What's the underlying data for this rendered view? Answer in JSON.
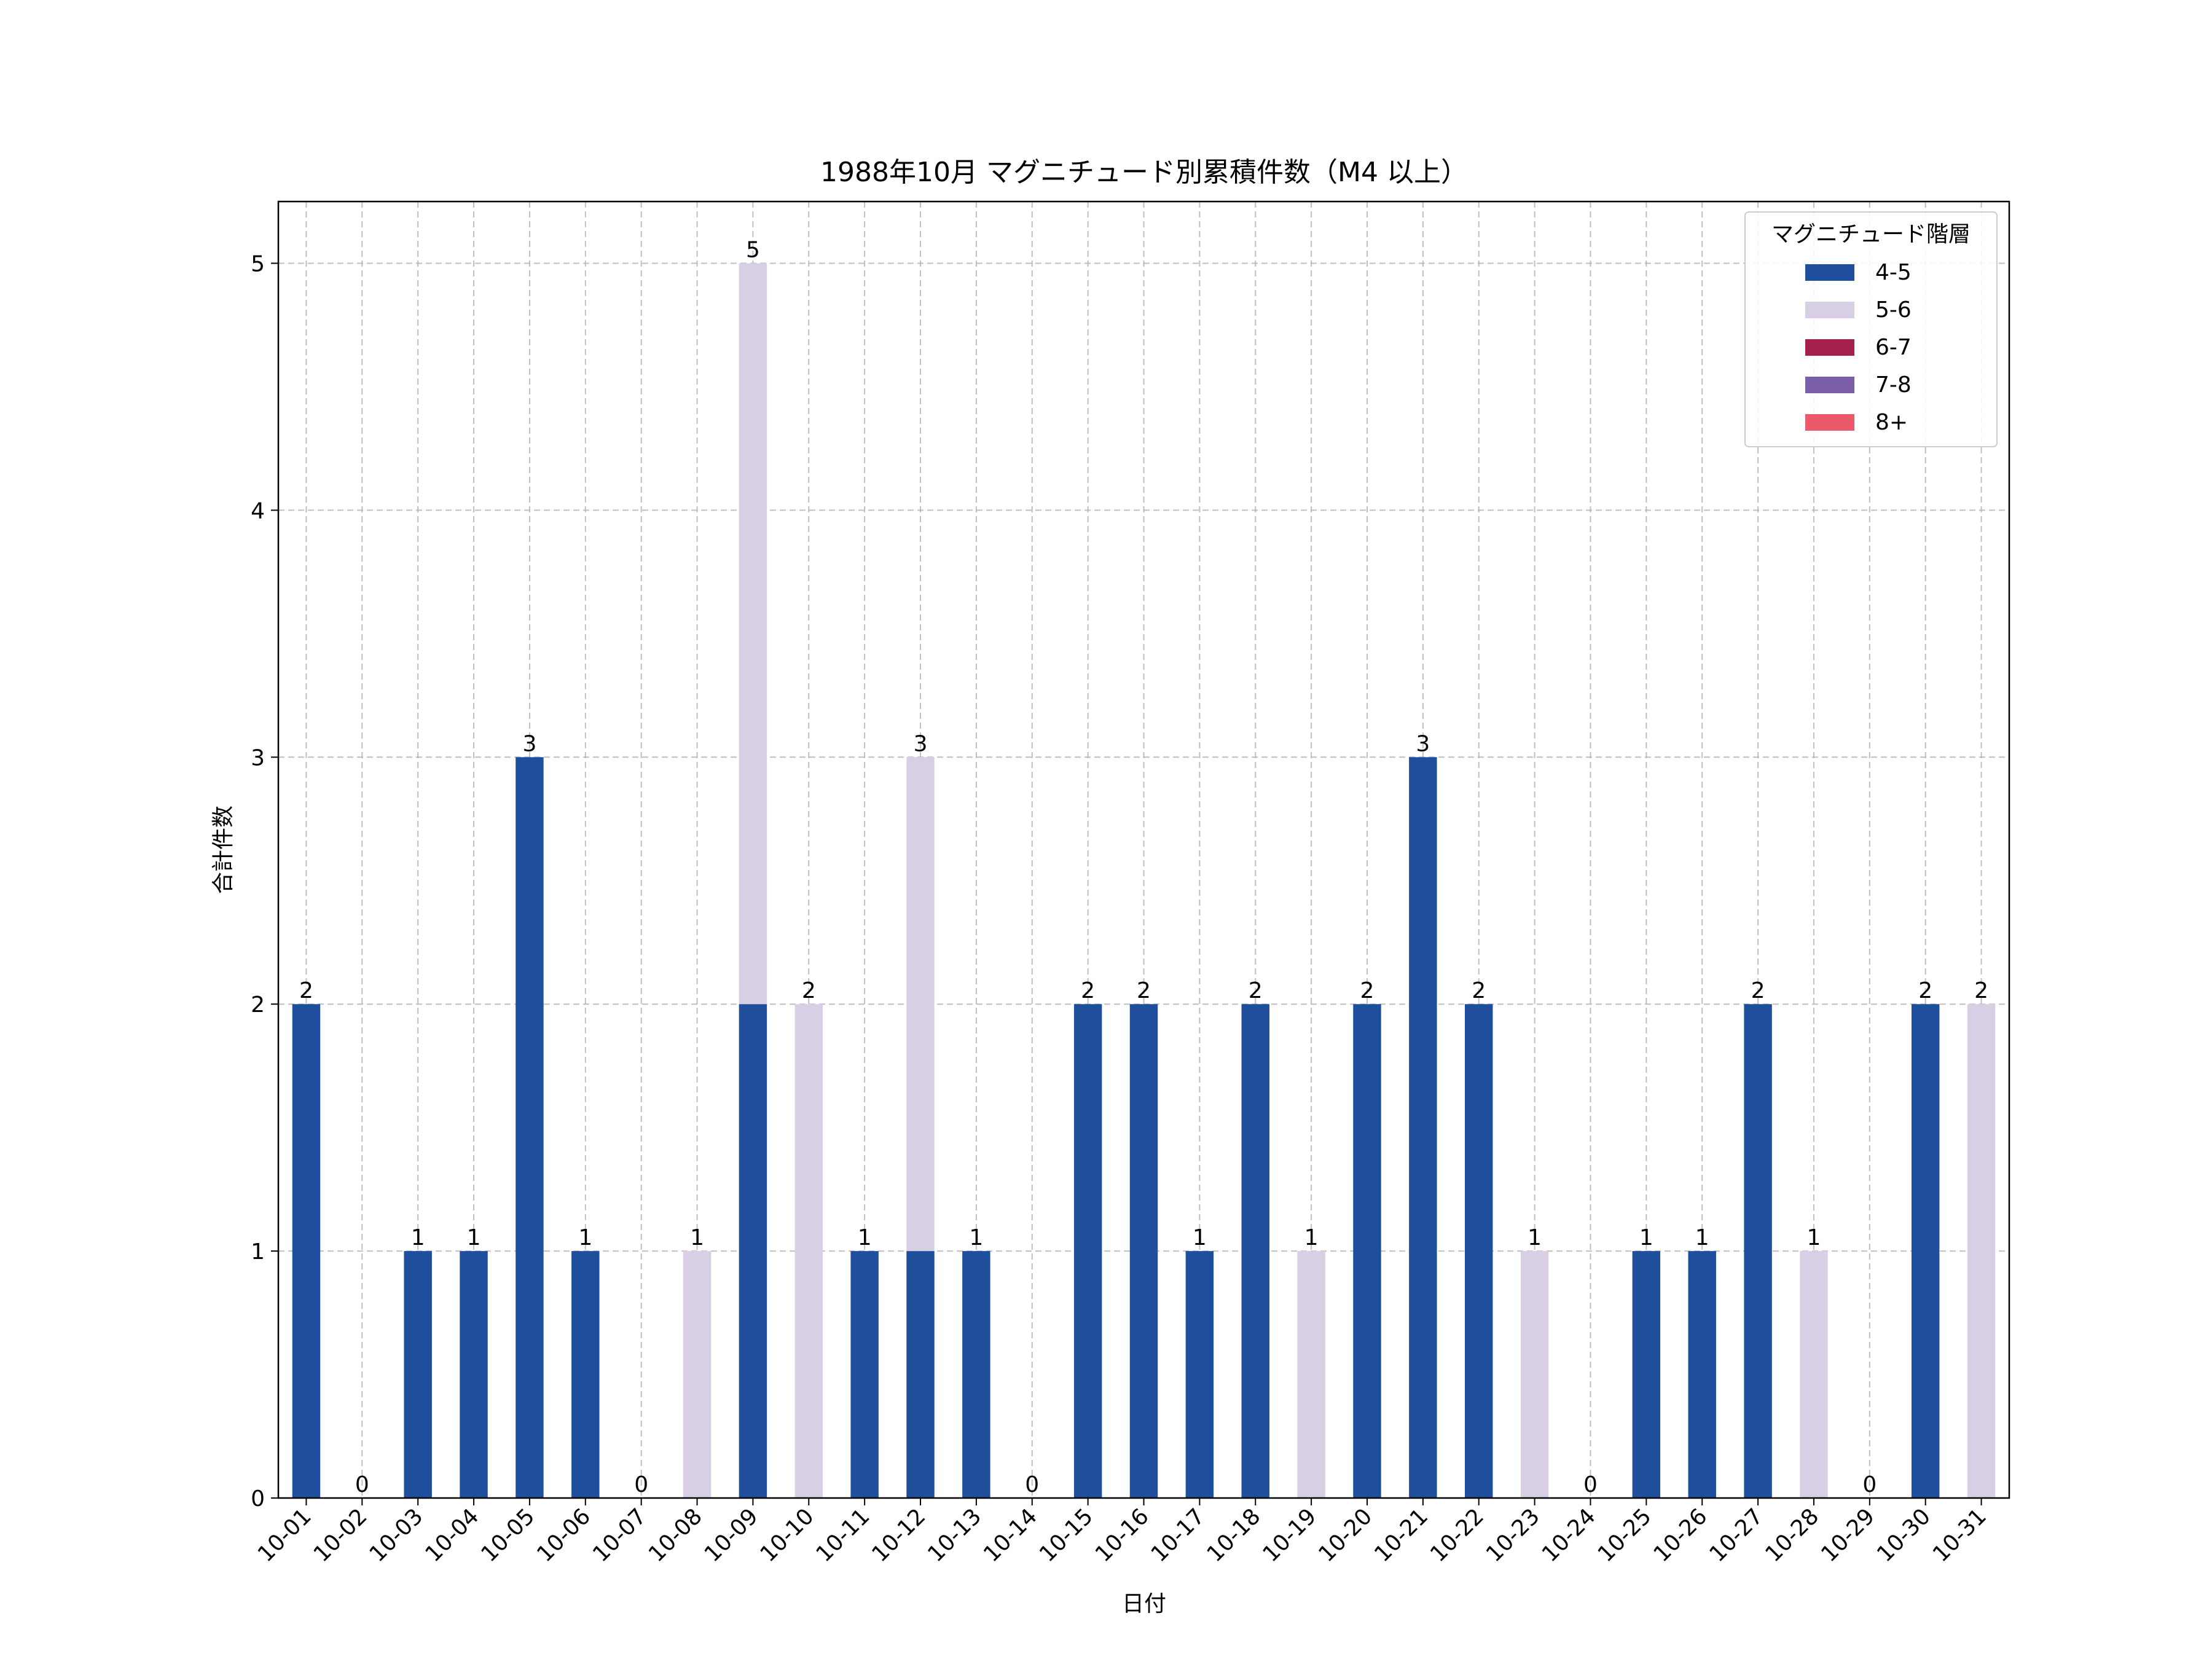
{
  "chart_data": {
    "type": "bar",
    "stacked": true,
    "title": "1988年10月 マグニチュード別累積件数（M4 以上）",
    "xlabel": "日付",
    "ylabel": "合計件数",
    "ylim": [
      0,
      5.25
    ],
    "yticks": [
      0,
      1,
      2,
      3,
      4,
      5
    ],
    "grid": true,
    "legend_title": "マグニチュード階層",
    "legend_position": "top-right",
    "categories": [
      "10-01",
      "10-02",
      "10-03",
      "10-04",
      "10-05",
      "10-06",
      "10-07",
      "10-08",
      "10-09",
      "10-10",
      "10-11",
      "10-12",
      "10-13",
      "10-14",
      "10-15",
      "10-16",
      "10-17",
      "10-18",
      "10-19",
      "10-20",
      "10-21",
      "10-22",
      "10-23",
      "10-24",
      "10-25",
      "10-26",
      "10-27",
      "10-28",
      "10-29",
      "10-30",
      "10-31"
    ],
    "series": [
      {
        "name": "4-5",
        "color": "#1f4e9c",
        "values": [
          2,
          0,
          1,
          1,
          3,
          1,
          0,
          0,
          2,
          0,
          1,
          1,
          1,
          0,
          2,
          2,
          1,
          2,
          0,
          2,
          3,
          2,
          0,
          0,
          1,
          1,
          2,
          0,
          0,
          2,
          0
        ]
      },
      {
        "name": "5-6",
        "color": "#d9cfe5",
        "values": [
          0,
          0,
          0,
          0,
          0,
          0,
          0,
          1,
          3,
          2,
          0,
          2,
          0,
          0,
          0,
          0,
          0,
          0,
          1,
          0,
          0,
          0,
          1,
          0,
          0,
          0,
          0,
          1,
          0,
          0,
          2
        ]
      },
      {
        "name": "6-7",
        "color": "#a3214a",
        "values": [
          0,
          0,
          0,
          0,
          0,
          0,
          0,
          0,
          0,
          0,
          0,
          0,
          0,
          0,
          0,
          0,
          0,
          0,
          0,
          0,
          0,
          0,
          0,
          0,
          0,
          0,
          0,
          0,
          0,
          0,
          0
        ]
      },
      {
        "name": "7-8",
        "color": "#7a5ea8",
        "values": [
          0,
          0,
          0,
          0,
          0,
          0,
          0,
          0,
          0,
          0,
          0,
          0,
          0,
          0,
          0,
          0,
          0,
          0,
          0,
          0,
          0,
          0,
          0,
          0,
          0,
          0,
          0,
          0,
          0,
          0,
          0
        ]
      },
      {
        "name": "8+",
        "color": "#ea5a6a",
        "values": [
          0,
          0,
          0,
          0,
          0,
          0,
          0,
          0,
          0,
          0,
          0,
          0,
          0,
          0,
          0,
          0,
          0,
          0,
          0,
          0,
          0,
          0,
          0,
          0,
          0,
          0,
          0,
          0,
          0,
          0,
          0
        ]
      }
    ],
    "totals": [
      2,
      0,
      1,
      1,
      3,
      1,
      0,
      1,
      5,
      2,
      1,
      3,
      1,
      0,
      2,
      2,
      1,
      2,
      1,
      2,
      3,
      2,
      1,
      0,
      1,
      1,
      2,
      1,
      0,
      2,
      2
    ]
  }
}
